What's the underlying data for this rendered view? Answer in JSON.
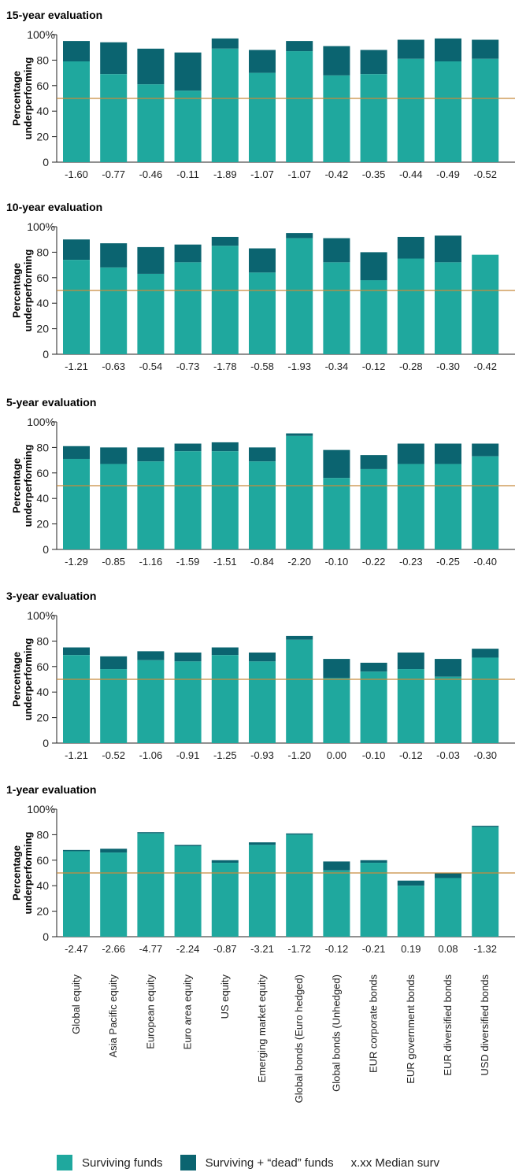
{
  "colors": {
    "surviving": "#1fa89e",
    "dead": "#0b6470",
    "median_line": "#c68b3c",
    "axis": "#222222"
  },
  "categories": [
    "Global equity",
    "Asia Pacific equity",
    "European equity",
    "Euro area equity",
    "US equity",
    "Emerging market equity",
    "Global bonds (Euro hedged)",
    "Global bonds (Unhedged)",
    "EUR corporate bonds",
    "EUR government bonds",
    "EUR diversified bonds",
    "USD diversified bonds"
  ],
  "chart_data": [
    {
      "type": "bar",
      "title": "15-year evaluation",
      "ylabel": "Percentage underperforming",
      "ylim": [
        0,
        100
      ],
      "yticks": [
        "0",
        "20",
        "40",
        "60",
        "80",
        "100%"
      ],
      "reference_line": 50,
      "series": [
        {
          "name": "Surviving funds",
          "values": [
            79,
            69,
            61,
            56,
            89,
            70,
            87,
            68,
            69,
            81,
            79,
            81
          ]
        },
        {
          "name": "Surviving + “dead” funds",
          "values": [
            95,
            94,
            89,
            86,
            97,
            88,
            95,
            91,
            88,
            96,
            97,
            96
          ]
        }
      ],
      "median_labels": [
        "-1.60",
        "-0.77",
        "-0.46",
        "-0.11",
        "-1.89",
        "-1.07",
        "-1.07",
        "-0.42",
        "-0.35",
        "-0.44",
        "-0.49",
        "-0.52"
      ]
    },
    {
      "type": "bar",
      "title": "10-year evaluation",
      "ylabel": "Percentage underperforming",
      "ylim": [
        0,
        100
      ],
      "yticks": [
        "0",
        "20",
        "40",
        "60",
        "80",
        "100%"
      ],
      "reference_line": 50,
      "series": [
        {
          "name": "Surviving funds",
          "values": [
            74,
            68,
            63,
            72,
            85,
            64,
            91,
            72,
            58,
            75,
            72,
            78
          ]
        },
        {
          "name": "Surviving + “dead” funds",
          "values": [
            90,
            87,
            84,
            86,
            92,
            83,
            95,
            91,
            80,
            92,
            93,
            78
          ]
        }
      ],
      "median_labels": [
        "-1.21",
        "-0.63",
        "-0.54",
        "-0.73",
        "-1.78",
        "-0.58",
        "-1.93",
        "-0.34",
        "-0.12",
        "-0.28",
        "-0.30",
        "-0.42"
      ]
    },
    {
      "type": "bar",
      "title": "5-year evaluation",
      "ylabel": "Percentage underperforming",
      "ylim": [
        0,
        100
      ],
      "yticks": [
        "0",
        "20",
        "40",
        "60",
        "80",
        "100%"
      ],
      "reference_line": 50,
      "series": [
        {
          "name": "Surviving funds",
          "values": [
            71,
            67,
            69,
            77,
            77,
            69,
            89,
            56,
            63,
            67,
            67,
            73
          ]
        },
        {
          "name": "Surviving + “dead” funds",
          "values": [
            81,
            80,
            80,
            83,
            84,
            80,
            91,
            78,
            74,
            83,
            83,
            83
          ]
        }
      ],
      "median_labels": [
        "-1.29",
        "-0.85",
        "-1.16",
        "-1.59",
        "-1.51",
        "-0.84",
        "-2.20",
        "-0.10",
        "-0.22",
        "-0.23",
        "-0.25",
        "-0.40"
      ]
    },
    {
      "type": "bar",
      "title": "3-year evaluation",
      "ylabel": "Percentage underperforming",
      "ylim": [
        0,
        100
      ],
      "yticks": [
        "0",
        "20",
        "40",
        "60",
        "80",
        "100%"
      ],
      "reference_line": 50,
      "series": [
        {
          "name": "Surviving funds",
          "values": [
            69,
            58,
            65,
            64,
            69,
            64,
            81,
            51,
            56,
            58,
            52,
            67
          ]
        },
        {
          "name": "Surviving + “dead” funds",
          "values": [
            75,
            68,
            72,
            71,
            75,
            71,
            84,
            66,
            63,
            71,
            66,
            74
          ]
        }
      ],
      "median_labels": [
        "-1.21",
        "-0.52",
        "-1.06",
        "-0.91",
        "-1.25",
        "-0.93",
        "-1.20",
        "0.00",
        "-0.10",
        "-0.12",
        "-0.03",
        "-0.30"
      ]
    },
    {
      "type": "bar",
      "title": "1-year evaluation",
      "ylabel": "Percentage underperforming",
      "ylim": [
        0,
        100
      ],
      "yticks": [
        "0",
        "20",
        "40",
        "60",
        "80",
        "100%"
      ],
      "reference_line": 50,
      "series": [
        {
          "name": "Surviving funds",
          "values": [
            67,
            66,
            81,
            71,
            58,
            72,
            80,
            52,
            58,
            40,
            46,
            86
          ]
        },
        {
          "name": "Surviving + “dead” funds",
          "values": [
            68,
            69,
            82,
            72,
            60,
            74,
            81,
            59,
            60,
            44,
            50,
            87
          ]
        }
      ],
      "median_labels": [
        "-2.47",
        "-2.66",
        "-4.77",
        "-2.24",
        "-0.87",
        "-3.21",
        "-1.72",
        "-0.12",
        "-0.21",
        "0.19",
        "0.08",
        "-1.32"
      ]
    }
  ],
  "legend": {
    "surviving_label": "Surviving funds",
    "dead_label": "Surviving + “dead” funds",
    "median_label": "x.xx Median surv"
  }
}
